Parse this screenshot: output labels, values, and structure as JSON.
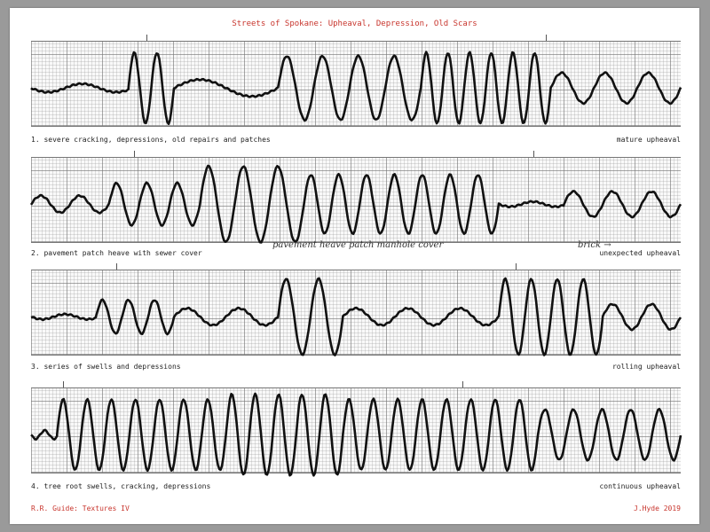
{
  "title": "Streets of Spokane: Upheaval, Depression, Old Scars",
  "accent_color": "#c8352d",
  "trace_color": "#111111",
  "strips": [
    {
      "label": "1. severe cracking, depressions, old repairs and patches",
      "type": "mature upheaval"
    },
    {
      "label": "2. pavement patch heave with sewer cover",
      "type": "unexpected upheaval",
      "notes": [
        "pavement heave patch manhole cover",
        "brick →"
      ]
    },
    {
      "label": "3. series of swells and depressions",
      "type": "rolling upheaval"
    },
    {
      "label": "4. tree root swells, cracking, depressions",
      "type": "continuous upheaval"
    }
  ],
  "footer": {
    "left": "R.R. Guide: Textures IV",
    "right": "J.Hyde 2019"
  }
}
